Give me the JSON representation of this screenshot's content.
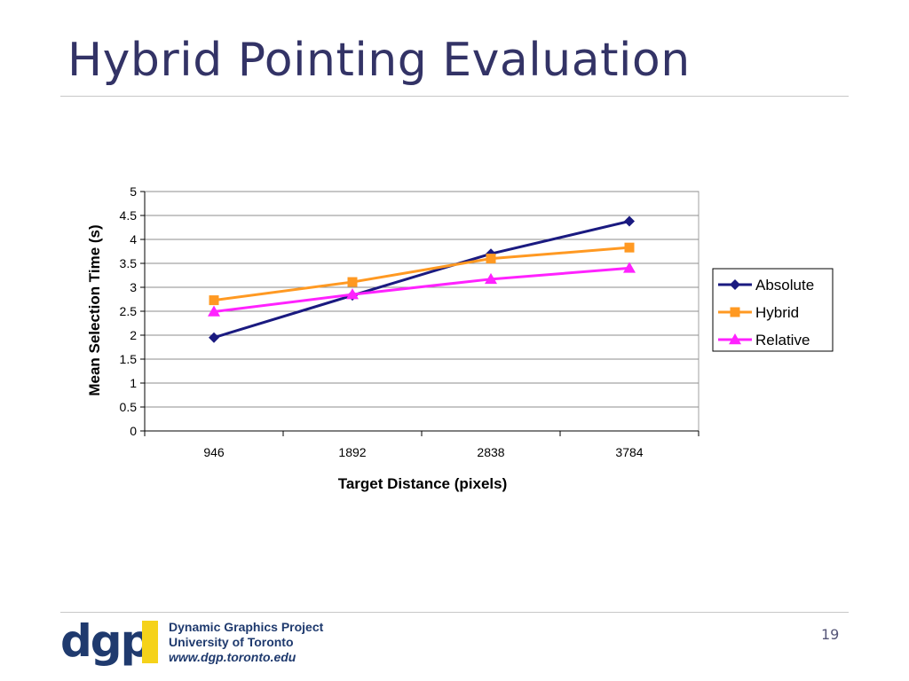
{
  "slide": {
    "title": "Hybrid Pointing Evaluation",
    "page_number": "19"
  },
  "footer": {
    "logo_text": "dgp",
    "line1": "Dynamic Graphics Project",
    "line2": "University of Toronto",
    "line3": "www.dgp.toronto.edu"
  },
  "colors": {
    "title": "#333366",
    "absolute": "#1a1a80",
    "hybrid": "#ff9922",
    "relative": "#ff22ff",
    "logo": "#1f3a6e",
    "logo_bar": "#f5d21a"
  },
  "chart_data": {
    "type": "line",
    "categories": [
      "946",
      "1892",
      "2838",
      "3784"
    ],
    "xlabel": "Target Distance (pixels)",
    "ylabel": "Mean Selection Time (s)",
    "ylim": [
      0,
      5
    ],
    "yticks": [
      "0",
      "0.5",
      "1",
      "1.5",
      "2",
      "2.5",
      "3",
      "3.5",
      "4",
      "4.5",
      "5"
    ],
    "grid": true,
    "legend_position": "right",
    "series": [
      {
        "name": "Absolute",
        "marker": "diamond",
        "values": [
          1.95,
          2.83,
          3.7,
          4.38
        ]
      },
      {
        "name": "Hybrid",
        "marker": "square",
        "values": [
          2.73,
          3.11,
          3.6,
          3.83
        ]
      },
      {
        "name": "Relative",
        "marker": "triangle",
        "values": [
          2.49,
          2.85,
          3.17,
          3.4
        ]
      }
    ]
  }
}
